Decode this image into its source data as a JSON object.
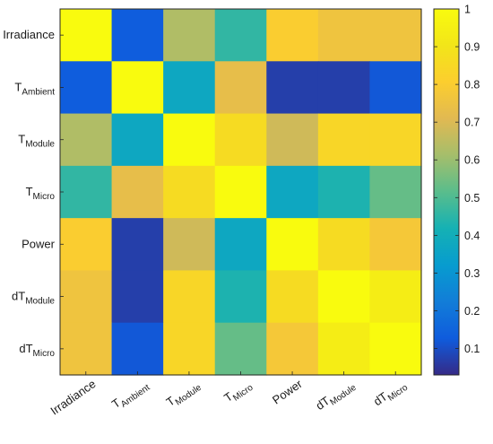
{
  "chart_data": {
    "type": "heatmap",
    "x_categories": [
      {
        "main": "Irradiance",
        "sub": ""
      },
      {
        "main": "T",
        "sub": "Ambient"
      },
      {
        "main": "T",
        "sub": "Module"
      },
      {
        "main": "T",
        "sub": "Micro"
      },
      {
        "main": "Power",
        "sub": ""
      },
      {
        "main": "dT",
        "sub": "Module"
      },
      {
        "main": "dT",
        "sub": "Micro"
      }
    ],
    "y_categories": [
      {
        "main": "Irradiance",
        "sub": ""
      },
      {
        "main": "T",
        "sub": "Ambient"
      },
      {
        "main": "T",
        "sub": "Module"
      },
      {
        "main": "T",
        "sub": "Micro"
      },
      {
        "main": "Power",
        "sub": ""
      },
      {
        "main": "dT",
        "sub": "Module"
      },
      {
        "main": "dT",
        "sub": "Micro"
      }
    ],
    "values": [
      [
        1.0,
        0.13,
        0.63,
        0.46,
        0.8,
        0.76,
        0.76
      ],
      [
        0.13,
        1.0,
        0.37,
        0.73,
        0.07,
        0.07,
        0.12
      ],
      [
        0.63,
        0.37,
        1.0,
        0.86,
        0.68,
        0.84,
        0.84
      ],
      [
        0.46,
        0.73,
        0.86,
        1.0,
        0.37,
        0.43,
        0.53
      ],
      [
        0.8,
        0.07,
        0.68,
        0.37,
        1.0,
        0.86,
        0.78
      ],
      [
        0.76,
        0.07,
        0.84,
        0.43,
        0.86,
        1.0,
        0.94
      ],
      [
        0.76,
        0.12,
        0.84,
        0.53,
        0.78,
        0.94,
        1.0
      ]
    ],
    "colormap": "parula",
    "clim": [
      0.03,
      1
    ],
    "colorbar": {
      "ticks": [
        "0.1",
        "0.2",
        "0.3",
        "0.4",
        "0.5",
        "0.6",
        "0.7",
        "0.8",
        "0.9",
        "1"
      ],
      "tick_values": [
        0.1,
        0.2,
        0.3,
        0.4,
        0.5,
        0.6,
        0.7,
        0.8,
        0.9,
        1.0
      ],
      "position": "right"
    },
    "title": "",
    "xlabel": "",
    "ylabel": ""
  }
}
